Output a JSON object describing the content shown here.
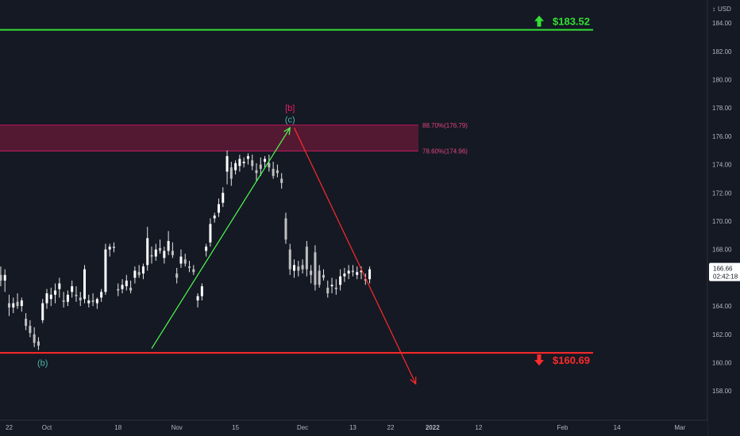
{
  "chart_data": {
    "type": "candlestick",
    "currency": "USD",
    "y_range": [
      157,
      186.5
    ],
    "y_ticks": [
      "158.00",
      "160.00",
      "162.00",
      "164.00",
      "166.00",
      "168.00",
      "170.00",
      "172.00",
      "174.00",
      "176.00",
      "178.00",
      "180.00",
      "182.00",
      "184.00"
    ],
    "x_ticks": [
      {
        "label": "22",
        "day": -9
      },
      {
        "label": "Oct",
        "day": 0
      },
      {
        "label": "18",
        "day": 17
      },
      {
        "label": "Nov",
        "day": 31
      },
      {
        "label": "15",
        "day": 45
      },
      {
        "label": "Dec",
        "day": 61
      },
      {
        "label": "13",
        "day": 73
      },
      {
        "label": "22",
        "day": 82
      },
      {
        "label": "2022",
        "day": 92,
        "bold": true
      },
      {
        "label": "12",
        "day": 103
      },
      {
        "label": "Feb",
        "day": 123
      },
      {
        "label": "14",
        "day": 136
      },
      {
        "label": "Mar",
        "day": 151
      }
    ],
    "current_price": {
      "value": 166.66,
      "label": "166.66",
      "countdown": "02:42:18"
    },
    "levels": [
      {
        "label": "$183.52",
        "value": 183.52,
        "color": "#33e033",
        "arrow": "up"
      },
      {
        "label": "$160.69",
        "value": 160.69,
        "color": "#ff2a2a",
        "arrow": "down"
      }
    ],
    "fib_zone": {
      "top": 176.79,
      "bottom": 174.96,
      "top_label": "88.70%(176.79)",
      "bottom_label": "78.60%(174.96)",
      "color": "#c2185b"
    },
    "wave_labels": [
      {
        "text": "(b)",
        "day": -1,
        "value": 160.0,
        "color": "#4db6ac"
      },
      {
        "text": "[b]",
        "day": 58,
        "value": 178.0,
        "color": "#e91e63"
      },
      {
        "text": "(c)",
        "day": 58,
        "value": 177.2,
        "color": "#4db6ac"
      }
    ],
    "arrows": [
      {
        "from_day": 25,
        "from_value": 161.0,
        "to_day": 58,
        "to_value": 176.6,
        "color": "#4cff4c"
      },
      {
        "from_day": 59,
        "from_value": 176.6,
        "to_day": 88,
        "to_value": 158.5,
        "color": "#ff2a2a"
      }
    ],
    "candles": [
      [
        -11,
        166.2,
        166.8,
        165.4,
        165.8
      ],
      [
        -10,
        165.8,
        166.6,
        165.0,
        166.2
      ],
      [
        -9,
        164.2,
        164.8,
        163.3,
        163.9
      ],
      [
        -8,
        163.9,
        164.6,
        163.5,
        164.2
      ],
      [
        -7,
        164.3,
        164.9,
        163.8,
        164.0
      ],
      [
        -6,
        164.0,
        164.6,
        163.6,
        164.4
      ],
      [
        -5,
        163.1,
        163.5,
        162.3,
        162.6
      ],
      [
        -4,
        162.6,
        163.0,
        161.8,
        162.1
      ],
      [
        -3,
        162.0,
        162.5,
        161.1,
        161.4
      ],
      [
        -2,
        161.5,
        161.8,
        160.9,
        161.2
      ],
      [
        -1,
        163.0,
        164.5,
        162.8,
        164.2
      ],
      [
        0,
        164.2,
        165.2,
        163.8,
        164.9
      ],
      [
        1,
        164.5,
        165.3,
        164.0,
        164.8
      ],
      [
        2,
        164.8,
        165.6,
        164.2,
        165.1
      ],
      [
        3,
        165.2,
        166.0,
        164.6,
        165.6
      ],
      [
        4,
        164.4,
        165.0,
        163.9,
        164.3
      ],
      [
        5,
        164.3,
        165.1,
        164.0,
        164.8
      ],
      [
        6,
        165.0,
        165.8,
        164.6,
        165.4
      ],
      [
        7,
        164.8,
        165.4,
        164.3,
        164.7
      ],
      [
        8,
        164.6,
        165.0,
        164.0,
        164.4
      ],
      [
        9,
        164.5,
        166.9,
        164.2,
        166.6
      ],
      [
        10,
        164.2,
        164.8,
        163.9,
        164.4
      ],
      [
        11,
        164.4,
        164.9,
        164.0,
        164.3
      ],
      [
        12,
        164.2,
        164.6,
        163.8,
        164.5
      ],
      [
        13,
        164.6,
        165.2,
        164.3,
        165.0
      ],
      [
        14,
        165.0,
        168.4,
        164.8,
        168.0
      ],
      [
        15,
        168.0,
        168.4,
        167.5,
        168.2
      ],
      [
        16,
        168.2,
        168.5,
        167.8,
        168.1
      ],
      [
        17,
        165.2,
        165.6,
        164.7,
        165.1
      ],
      [
        18,
        165.2,
        165.9,
        164.9,
        165.5
      ],
      [
        19,
        165.4,
        166.2,
        165.1,
        165.8
      ],
      [
        20,
        165.3,
        165.8,
        164.9,
        165.1
      ],
      [
        21,
        166.0,
        166.8,
        165.6,
        166.5
      ],
      [
        22,
        166.4,
        166.9,
        166.0,
        166.2
      ],
      [
        23,
        166.3,
        167.0,
        165.9,
        166.8
      ],
      [
        24,
        166.9,
        169.6,
        166.5,
        168.8
      ],
      [
        25,
        167.6,
        168.2,
        167.0,
        167.5
      ],
      [
        26,
        167.5,
        168.4,
        167.2,
        168.0
      ],
      [
        27,
        168.1,
        168.7,
        167.7,
        167.9
      ],
      [
        28,
        167.4,
        168.2,
        167.0,
        167.9
      ],
      [
        29,
        167.9,
        169.3,
        167.6,
        168.6
      ],
      [
        30,
        167.9,
        168.5,
        167.4,
        167.6
      ],
      [
        31,
        166.3,
        166.7,
        165.6,
        166.0
      ],
      [
        32,
        167.0,
        168.0,
        166.7,
        167.5
      ],
      [
        33,
        167.3,
        167.7,
        166.8,
        167.0
      ],
      [
        34,
        166.8,
        167.2,
        166.4,
        166.7
      ],
      [
        35,
        166.6,
        166.9,
        166.2,
        166.4
      ],
      [
        36,
        164.4,
        164.9,
        163.9,
        164.7
      ],
      [
        37,
        164.7,
        165.6,
        164.4,
        165.4
      ],
      [
        38,
        167.9,
        168.4,
        167.5,
        168.2
      ],
      [
        39,
        168.5,
        170.2,
        168.2,
        169.8
      ],
      [
        40,
        170.2,
        170.6,
        169.9,
        170.4
      ],
      [
        41,
        170.6,
        171.6,
        170.3,
        171.2
      ],
      [
        42,
        171.3,
        172.4,
        171.0,
        172.0
      ],
      [
        43,
        173.5,
        175.0,
        172.6,
        174.6
      ],
      [
        44,
        173.8,
        174.2,
        172.5,
        173.0
      ],
      [
        45,
        173.6,
        174.3,
        173.3,
        174.1
      ],
      [
        46,
        173.9,
        174.7,
        173.5,
        174.4
      ],
      [
        47,
        174.1,
        174.5,
        173.8,
        174.2
      ],
      [
        48,
        174.4,
        174.8,
        174.0,
        174.6
      ],
      [
        49,
        174.3,
        174.7,
        173.6,
        173.9
      ],
      [
        50,
        173.6,
        174.1,
        172.8,
        173.4
      ],
      [
        51,
        174.0,
        174.5,
        173.2,
        173.7
      ],
      [
        52,
        174.2,
        174.6,
        173.8,
        174.4
      ],
      [
        53,
        174.1,
        174.7,
        173.5,
        173.8
      ],
      [
        54,
        173.7,
        174.2,
        173.0,
        173.2
      ],
      [
        55,
        173.6,
        174.0,
        173.1,
        173.4
      ],
      [
        56,
        173.0,
        173.4,
        172.3,
        172.7
      ],
      [
        57,
        170.2,
        170.6,
        168.4,
        168.7
      ],
      [
        58,
        168.0,
        168.4,
        166.2,
        166.6
      ],
      [
        59,
        166.5,
        167.3,
        166.0,
        166.9
      ],
      [
        60,
        166.8,
        167.2,
        166.1,
        166.5
      ],
      [
        61,
        166.9,
        167.3,
        166.3,
        166.6
      ],
      [
        62,
        168.2,
        168.6,
        166.1,
        166.6
      ],
      [
        63,
        166.5,
        166.9,
        165.6,
        166.2
      ],
      [
        64,
        167.8,
        168.3,
        165.1,
        165.5
      ],
      [
        65,
        166.5,
        166.9,
        165.3,
        165.5
      ],
      [
        66,
        166.2,
        166.6,
        165.8,
        166.0
      ],
      [
        67,
        165.3,
        165.8,
        164.6,
        164.9
      ],
      [
        68,
        165.4,
        166.0,
        164.9,
        165.5
      ],
      [
        69,
        165.3,
        165.9,
        164.8,
        165.2
      ],
      [
        70,
        165.5,
        166.6,
        165.1,
        166.1
      ],
      [
        71,
        166.1,
        166.7,
        165.7,
        166.3
      ],
      [
        72,
        166.3,
        166.9,
        165.9,
        166.5
      ],
      [
        73,
        166.5,
        166.9,
        166.1,
        166.4
      ],
      [
        74,
        166.2,
        166.8,
        165.9,
        166.4
      ],
      [
        75,
        166.4,
        166.8,
        165.9,
        166.5
      ],
      [
        76,
        165.9,
        166.3,
        165.5,
        165.8
      ],
      [
        77,
        165.9,
        166.8,
        165.6,
        166.6
      ]
    ]
  }
}
